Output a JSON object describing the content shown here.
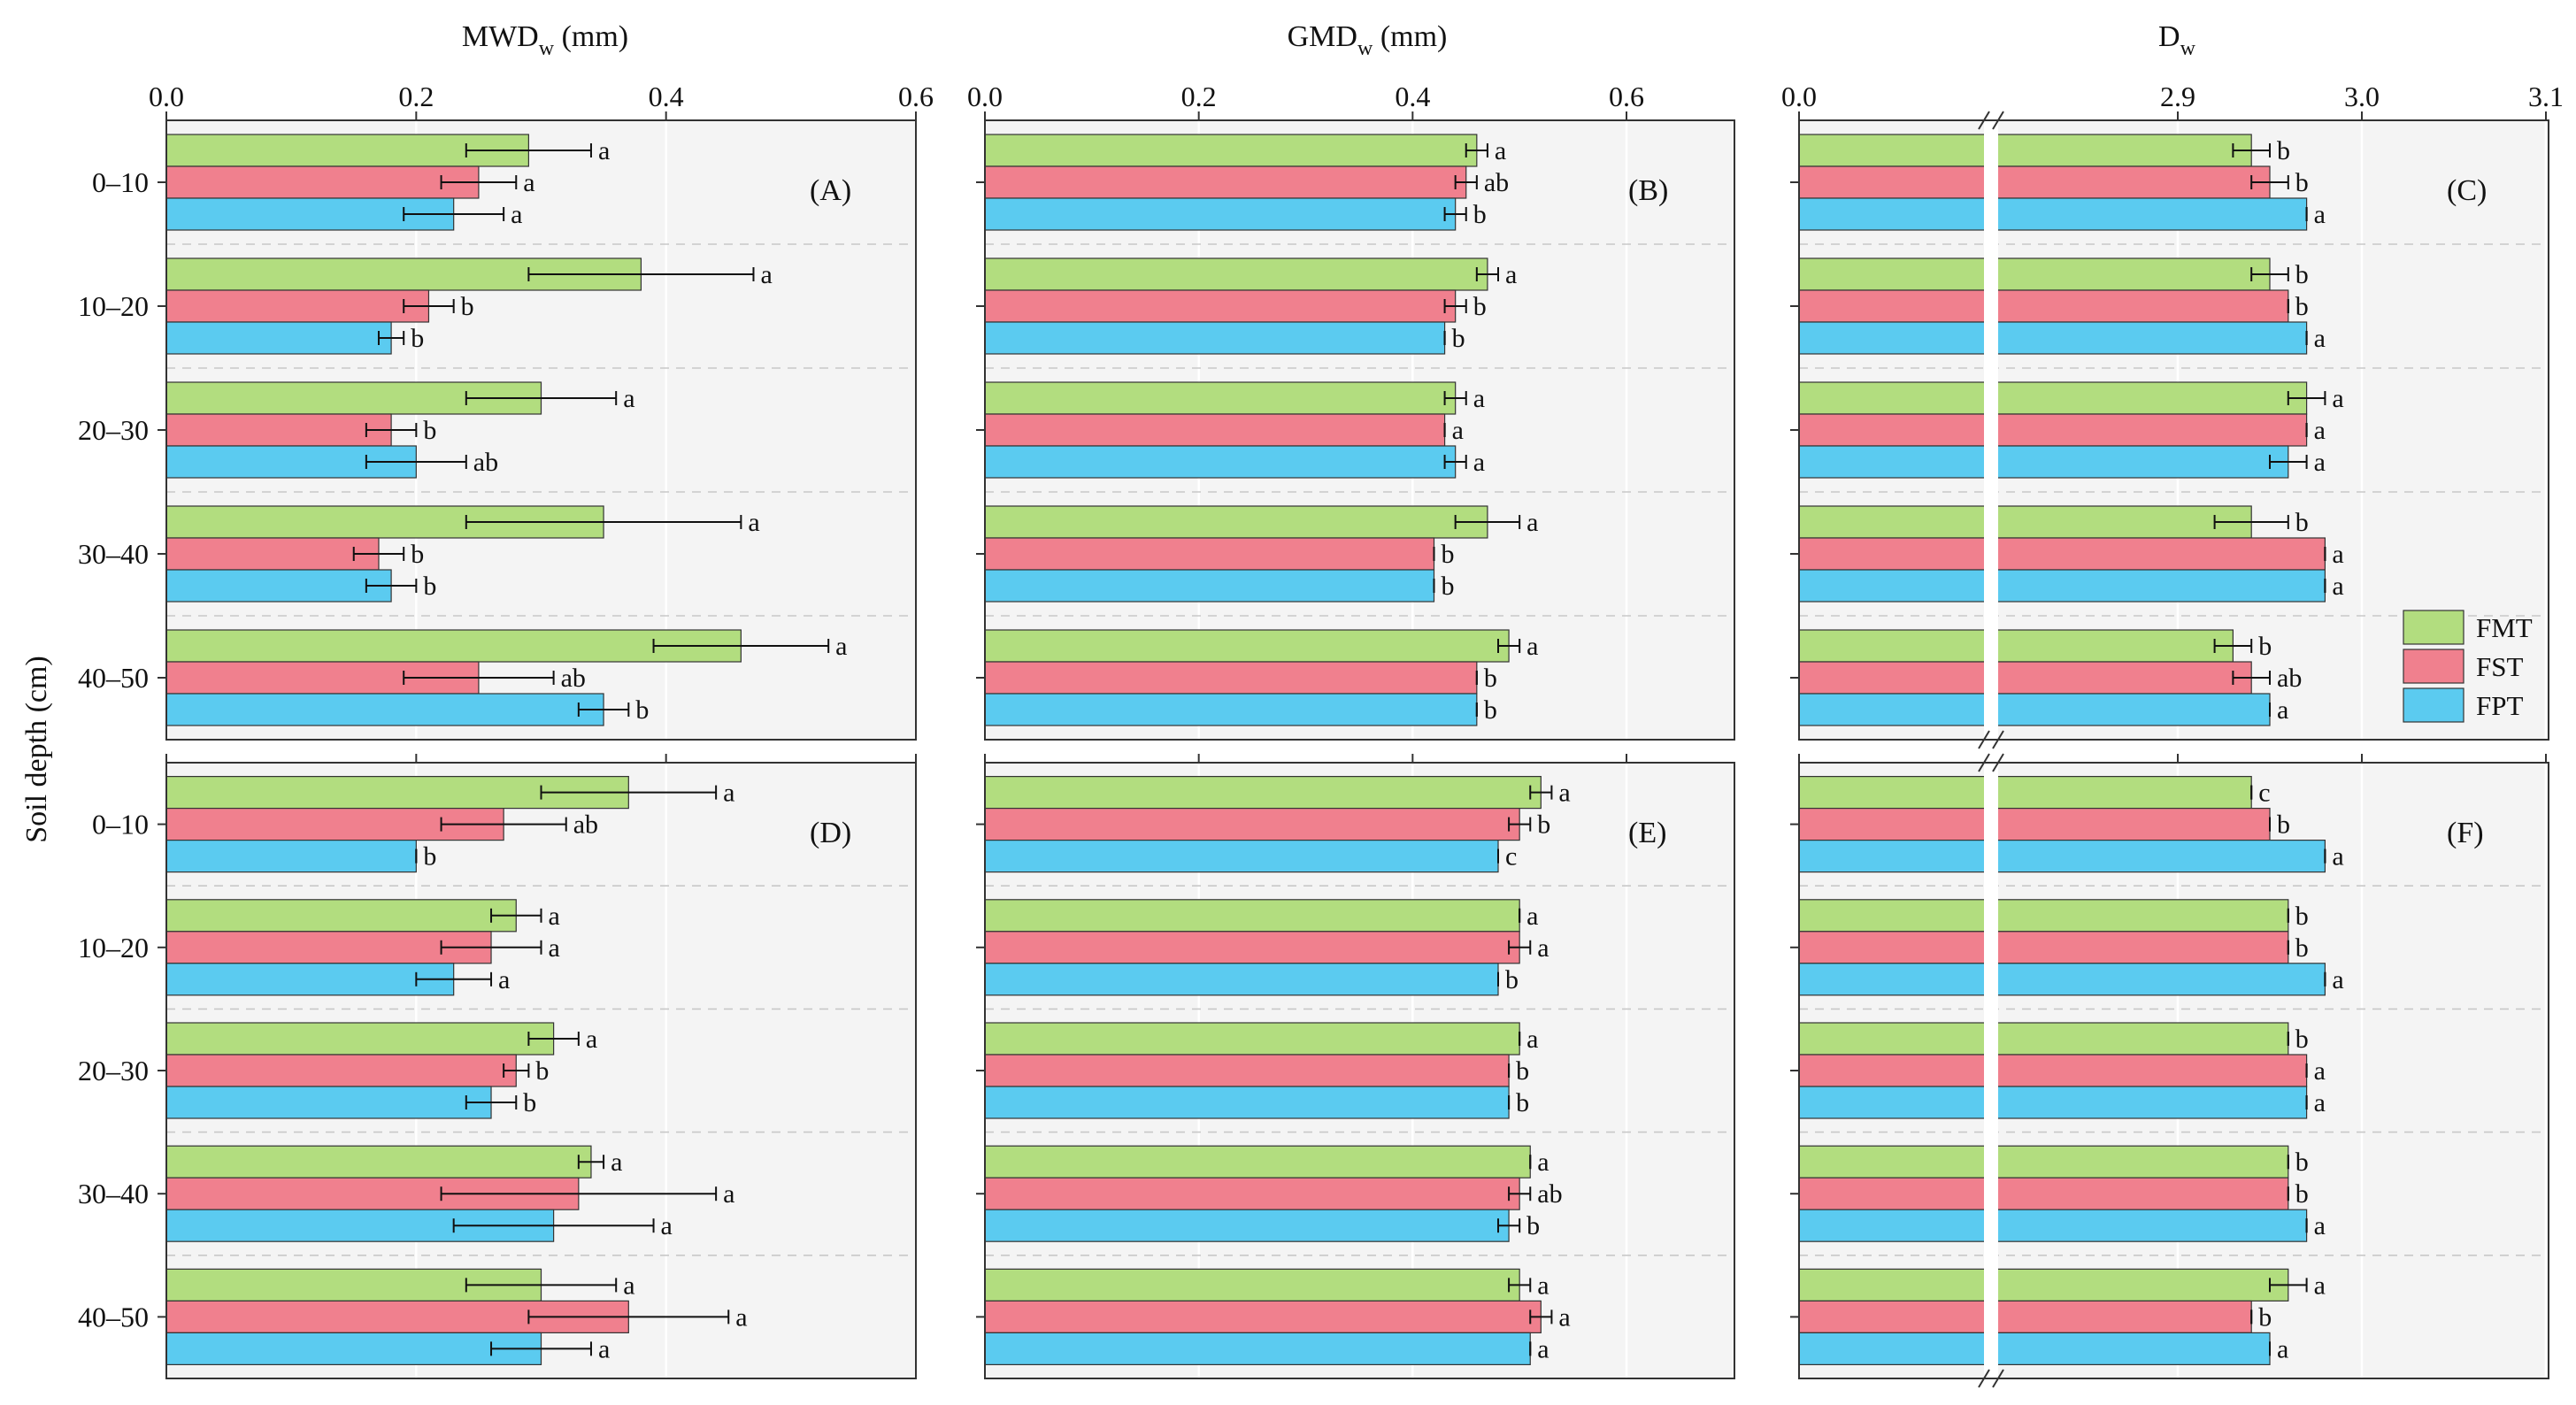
{
  "chart_data": {
    "type": "bar",
    "orientation": "horizontal",
    "categories": [
      "0–10",
      "10–20",
      "20–30",
      "30–40",
      "40–50"
    ],
    "series_names": [
      "FMT",
      "FST",
      "FPT"
    ],
    "colors": {
      "FMT": "#b2dd7f",
      "FST": "#f0808e",
      "FPT": "#5bcbf0"
    },
    "ylabel": "Soil depth (cm)",
    "columns": [
      {
        "title_main": "MWD",
        "title_sub": "w",
        "title_unit": " (mm)",
        "ticks": [
          "0.0",
          "0.2",
          "0.4",
          "0.6"
        ],
        "tick_values": [
          0,
          0.2,
          0.4,
          0.6
        ],
        "xlim": [
          0,
          0.6
        ]
      },
      {
        "title_main": "GMD",
        "title_sub": "w",
        "title_unit": " (mm)",
        "ticks": [
          "0.0",
          "0.2",
          "0.4",
          "0.6"
        ],
        "tick_values": [
          0,
          0.2,
          0.4,
          0.6
        ],
        "xlim": [
          0,
          0.7
        ]
      },
      {
        "title_main": "D",
        "title_sub": "w",
        "title_unit": "",
        "ticks": [
          "0.0",
          "2.9",
          "3.0",
          "3.1"
        ],
        "tick_values": [
          0,
          2.9,
          3.0,
          3.1
        ],
        "broken_axis": true,
        "xlim": [
          2.8,
          3.1
        ]
      }
    ],
    "panels": [
      {
        "label": "(A)",
        "col": 0,
        "row": 0,
        "values": {
          "FMT": [
            0.29,
            0.38,
            0.3,
            0.35,
            0.46
          ],
          "FST": [
            0.25,
            0.21,
            0.18,
            0.17,
            0.25
          ],
          "FPT": [
            0.23,
            0.18,
            0.2,
            0.18,
            0.35
          ]
        },
        "errors": {
          "FMT": [
            0.05,
            0.09,
            0.06,
            0.11,
            0.07
          ],
          "FST": [
            0.03,
            0.02,
            0.02,
            0.02,
            0.06
          ],
          "FPT": [
            0.04,
            0.01,
            0.04,
            0.02,
            0.02
          ]
        },
        "letters": {
          "FMT": [
            "a",
            "a",
            "a",
            "a",
            "a"
          ],
          "FST": [
            "a",
            "b",
            "b",
            "b",
            "ab"
          ],
          "FPT": [
            "a",
            "b",
            "ab",
            "b",
            "b"
          ]
        }
      },
      {
        "label": "(B)",
        "col": 1,
        "row": 0,
        "values": {
          "FMT": [
            0.46,
            0.47,
            0.44,
            0.47,
            0.49
          ],
          "FST": [
            0.45,
            0.44,
            0.43,
            0.42,
            0.46
          ],
          "FPT": [
            0.44,
            0.43,
            0.44,
            0.42,
            0.46
          ]
        },
        "errors": {
          "FMT": [
            0.01,
            0.01,
            0.01,
            0.03,
            0.01
          ],
          "FST": [
            0.01,
            0.01,
            0.0,
            0.0,
            0.0
          ],
          "FPT": [
            0.01,
            0.0,
            0.01,
            0.0,
            0.0
          ]
        },
        "letters": {
          "FMT": [
            "a",
            "a",
            "a",
            "a",
            "a"
          ],
          "FST": [
            "ab",
            "b",
            "a",
            "b",
            "b"
          ],
          "FPT": [
            "b",
            "b",
            "a",
            "b",
            "b"
          ]
        }
      },
      {
        "label": "(C)",
        "col": 2,
        "row": 0,
        "values": {
          "FMT": [
            2.94,
            2.95,
            2.97,
            2.94,
            2.93
          ],
          "FST": [
            2.95,
            2.96,
            2.97,
            2.98,
            2.94
          ],
          "FPT": [
            2.97,
            2.97,
            2.96,
            2.98,
            2.95
          ]
        },
        "errors": {
          "FMT": [
            0.01,
            0.01,
            0.01,
            0.02,
            0.01
          ],
          "FST": [
            0.01,
            0.0,
            0.0,
            0.0,
            0.01
          ],
          "FPT": [
            0.0,
            0.0,
            0.01,
            0.0,
            0.0
          ]
        },
        "letters": {
          "FMT": [
            "b",
            "b",
            "a",
            "b",
            "b"
          ],
          "FST": [
            "b",
            "b",
            "a",
            "a",
            "ab"
          ],
          "FPT": [
            "a",
            "a",
            "a",
            "a",
            "a"
          ]
        }
      },
      {
        "label": "(D)",
        "col": 0,
        "row": 1,
        "values": {
          "FMT": [
            0.37,
            0.28,
            0.31,
            0.34,
            0.3
          ],
          "FST": [
            0.27,
            0.26,
            0.28,
            0.33,
            0.37
          ],
          "FPT": [
            0.2,
            0.23,
            0.26,
            0.31,
            0.3
          ]
        },
        "errors": {
          "FMT": [
            0.07,
            0.02,
            0.02,
            0.01,
            0.06
          ],
          "FST": [
            0.05,
            0.04,
            0.01,
            0.11,
            0.08
          ],
          "FPT": [
            0.0,
            0.03,
            0.02,
            0.08,
            0.04
          ]
        },
        "letters": {
          "FMT": [
            "a",
            "a",
            "a",
            "a",
            "a"
          ],
          "FST": [
            "ab",
            "a",
            "b",
            "a",
            "a"
          ],
          "FPT": [
            "b",
            "a",
            "b",
            "a",
            "a"
          ]
        }
      },
      {
        "label": "(E)",
        "col": 1,
        "row": 1,
        "values": {
          "FMT": [
            0.52,
            0.5,
            0.5,
            0.51,
            0.5
          ],
          "FST": [
            0.5,
            0.5,
            0.49,
            0.5,
            0.52
          ],
          "FPT": [
            0.48,
            0.48,
            0.49,
            0.49,
            0.51
          ]
        },
        "errors": {
          "FMT": [
            0.01,
            0.0,
            0.0,
            0.0,
            0.01
          ],
          "FST": [
            0.01,
            0.01,
            0.0,
            0.01,
            0.01
          ],
          "FPT": [
            0.0,
            0.0,
            0.0,
            0.01,
            0.0
          ]
        },
        "letters": {
          "FMT": [
            "a",
            "a",
            "a",
            "a",
            "a"
          ],
          "FST": [
            "b",
            "a",
            "b",
            "ab",
            "a"
          ],
          "FPT": [
            "c",
            "b",
            "b",
            "b",
            "a"
          ]
        }
      },
      {
        "label": "(F)",
        "col": 2,
        "row": 1,
        "values": {
          "FMT": [
            2.94,
            2.96,
            2.96,
            2.96,
            2.96
          ],
          "FST": [
            2.95,
            2.96,
            2.97,
            2.96,
            2.94
          ],
          "FPT": [
            2.98,
            2.98,
            2.97,
            2.97,
            2.95
          ]
        },
        "errors": {
          "FMT": [
            0.0,
            0.0,
            0.0,
            0.0,
            0.01
          ],
          "FST": [
            0.0,
            0.0,
            0.0,
            0.0,
            0.0
          ],
          "FPT": [
            0.0,
            0.0,
            0.0,
            0.0,
            0.0
          ]
        },
        "letters": {
          "FMT": [
            "c",
            "b",
            "b",
            "b",
            "a"
          ],
          "FST": [
            "b",
            "b",
            "a",
            "b",
            "b"
          ],
          "FPT": [
            "a",
            "a",
            "a",
            "a",
            "a"
          ]
        }
      }
    ]
  }
}
